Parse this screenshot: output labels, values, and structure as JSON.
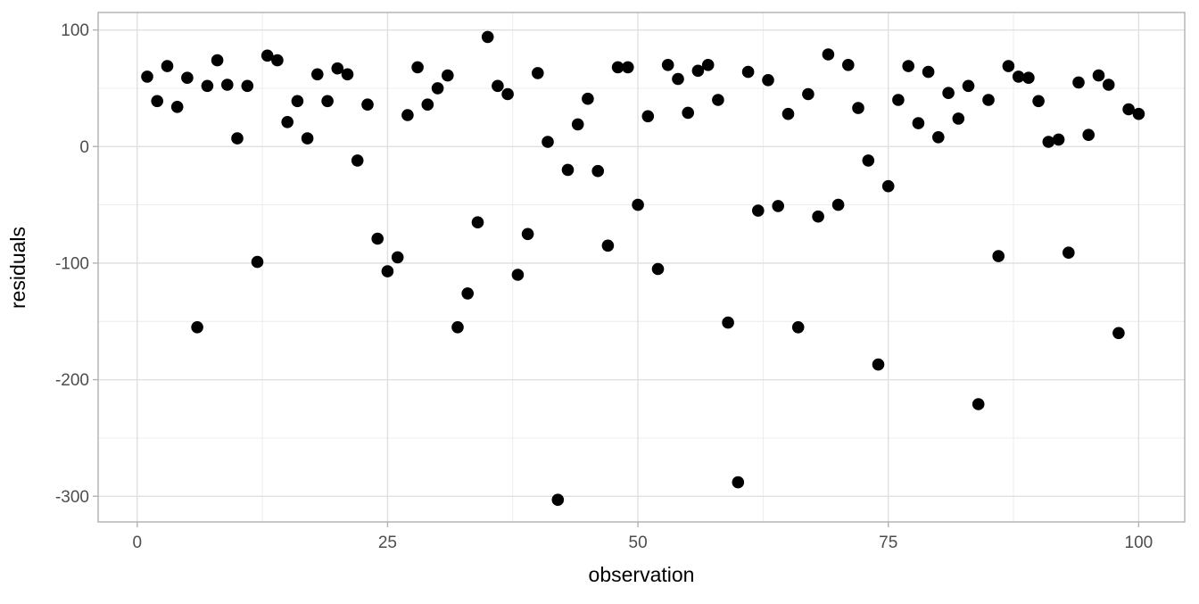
{
  "chart_data": {
    "type": "scatter",
    "title": "",
    "xlabel": "observation",
    "ylabel": "residuals",
    "x_ticks": [
      0,
      25,
      50,
      75,
      100
    ],
    "y_ticks": [
      100,
      0,
      -100,
      -200,
      -300
    ],
    "x_minor_ticks": [
      12.5,
      37.5,
      62.5,
      87.5
    ],
    "y_minor_ticks": [
      50,
      -50,
      -150,
      -250
    ],
    "xlim": [
      -3.9,
      104.6
    ],
    "ylim": [
      -322,
      115
    ],
    "grid": true,
    "legend": "none",
    "x": [
      1,
      2,
      3,
      4,
      5,
      6,
      7,
      8,
      9,
      10,
      11,
      12,
      13,
      14,
      15,
      16,
      17,
      18,
      19,
      20,
      21,
      22,
      23,
      24,
      25,
      26,
      27,
      28,
      29,
      30,
      31,
      32,
      33,
      34,
      35,
      36,
      37,
      38,
      39,
      40,
      41,
      42,
      43,
      44,
      45,
      46,
      47,
      48,
      49,
      50,
      51,
      52,
      53,
      54,
      55,
      56,
      57,
      58,
      59,
      60,
      61,
      62,
      63,
      64,
      65,
      66,
      67,
      68,
      69,
      70,
      71,
      72,
      73,
      74,
      75,
      76,
      77,
      78,
      79,
      80,
      81,
      82,
      83,
      84,
      85,
      86,
      87,
      88,
      89,
      90,
      91,
      92,
      93,
      94,
      95,
      96,
      97,
      98,
      99,
      100
    ],
    "y": [
      60,
      39,
      69,
      34,
      59,
      -155,
      52,
      74,
      53,
      7,
      52,
      -99,
      78,
      74,
      21,
      39,
      7,
      62,
      39,
      67,
      62,
      -12,
      36,
      -79,
      -107,
      -95,
      27,
      68,
      36,
      50,
      61,
      -155,
      -126,
      -65,
      94,
      52,
      45,
      -110,
      -75,
      63,
      4,
      -303,
      -20,
      19,
      41,
      -21,
      -85,
      68,
      68,
      -50,
      26,
      -105,
      70,
      58,
      29,
      65,
      70,
      40,
      -151,
      -288,
      64,
      -55,
      57,
      -51,
      28,
      -155,
      45,
      -60,
      79,
      -50,
      70,
      33,
      -12,
      -187,
      -34,
      40,
      69,
      20,
      64,
      8,
      46,
      24,
      52,
      -221,
      40,
      -94,
      69,
      60,
      59,
      39,
      4,
      6,
      -91,
      55,
      10,
      61,
      53,
      -160,
      32,
      28
    ]
  },
  "style": {
    "point_color": "#000000",
    "grid_major_color": "#dedede",
    "grid_minor_color": "#ebebeb",
    "panel_border_color": "#b0b0b0",
    "tick_mark_color": "#b3b3b3",
    "tick_label_color": "#4d4d4d",
    "axis_title_color": "#000000",
    "background_color": "#ffffff"
  }
}
